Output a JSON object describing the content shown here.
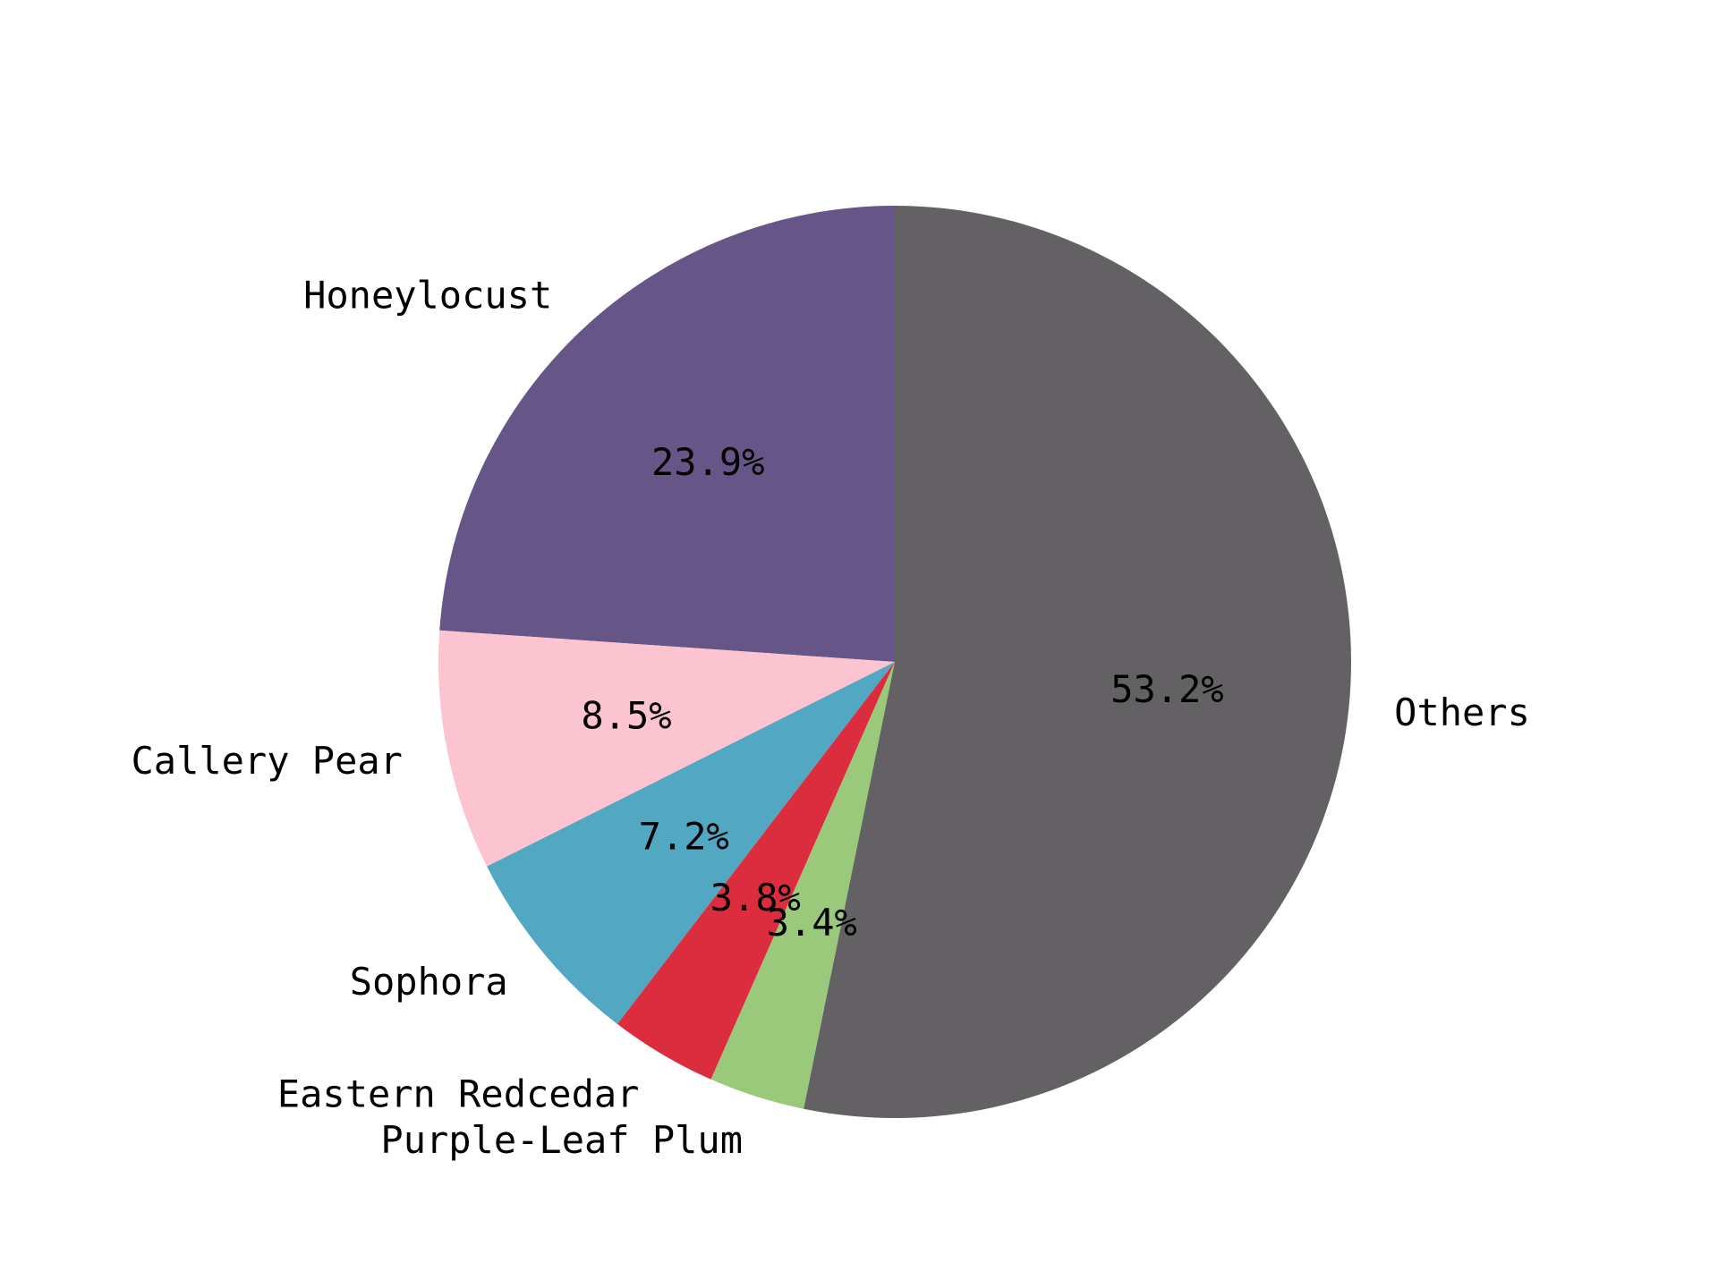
{
  "chart_data": {
    "type": "pie",
    "start_angle_deg": 90,
    "direction": "counterclockwise",
    "slices": [
      {
        "label": "Honeylocust",
        "value": 23.9,
        "pct_label": "23.9%",
        "color": "#665687"
      },
      {
        "label": "Callery Pear",
        "value": 8.5,
        "pct_label": "8.5%",
        "color": "#fcc3d1"
      },
      {
        "label": "Sophora",
        "value": 7.2,
        "pct_label": "7.2%",
        "color": "#52a7c3"
      },
      {
        "label": "Eastern Redcedar",
        "value": 3.8,
        "pct_label": "3.8%",
        "color": "#dc2d3e"
      },
      {
        "label": "Purple-Leaf Plum",
        "value": 3.4,
        "pct_label": "3.4%",
        "color": "#9ac97c"
      },
      {
        "label": "Others",
        "value": 53.2,
        "pct_label": "53.2%",
        "color": "#636164"
      }
    ]
  }
}
